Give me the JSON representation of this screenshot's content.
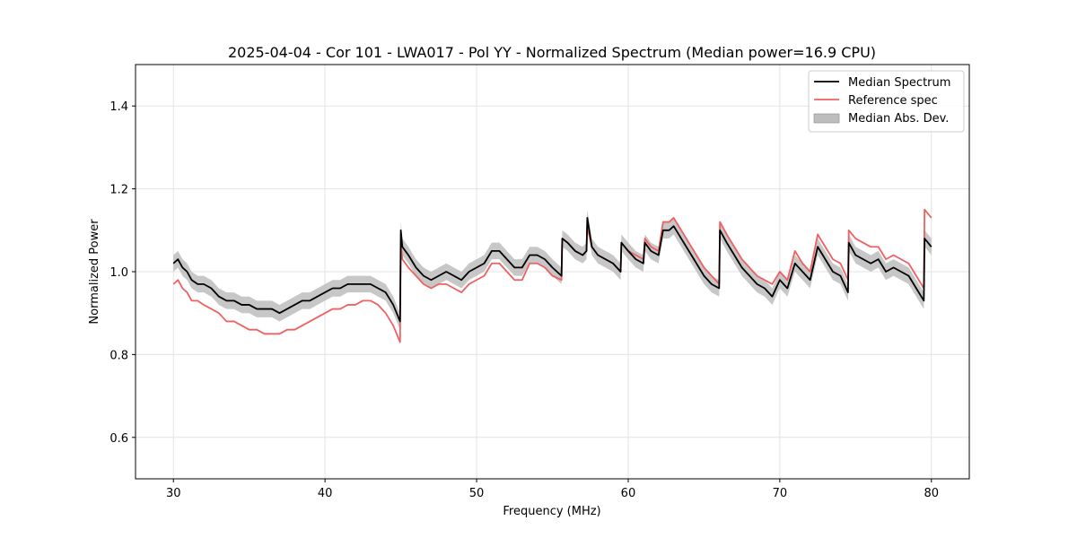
{
  "chart_data": {
    "type": "line",
    "title": "2025-04-04 - Cor 101 - LWA017 - Pol YY - Normalized Spectrum (Median power=16.9 CPU)",
    "xlabel": "Frequency (MHz)",
    "ylabel": "Normalized Power",
    "xlim": [
      27.5,
      82.5
    ],
    "ylim": [
      0.5,
      1.5
    ],
    "grid": true,
    "legend_position": "top-right",
    "xticks": [
      30,
      40,
      50,
      60,
      70,
      80
    ],
    "yticks": [
      0.6,
      0.8,
      1.0,
      1.2,
      1.4
    ],
    "xtick_labels": [
      "30",
      "40",
      "50",
      "60",
      "70",
      "80"
    ],
    "ytick_labels": [
      "0.6",
      "0.8",
      "1.0",
      "1.2",
      "1.4"
    ],
    "colors": {
      "median": "#000000",
      "reference": "#f06060",
      "mad": "#bdbdbd"
    },
    "legend": [
      "Median Spectrum",
      "Reference spec",
      "Median Abs. Dev."
    ],
    "series": [
      {
        "name": "Median Spectrum",
        "x": [
          30.0,
          30.3,
          30.6,
          30.9,
          31.2,
          31.6,
          32.0,
          32.5,
          33.0,
          33.5,
          34.0,
          34.5,
          35.0,
          35.5,
          36.0,
          36.5,
          37.0,
          37.5,
          38.0,
          38.5,
          39.0,
          39.5,
          40.0,
          40.5,
          41.0,
          41.5,
          42.0,
          42.5,
          43.0,
          43.5,
          44.0,
          44.5,
          44.95,
          45.0,
          45.1,
          45.5,
          46.0,
          46.5,
          47.0,
          47.5,
          48.0,
          48.5,
          49.0,
          49.5,
          50.0,
          50.5,
          51.0,
          51.5,
          52.0,
          52.5,
          53.0,
          53.5,
          54.0,
          54.5,
          55.0,
          55.6,
          55.65,
          56.0,
          56.5,
          57.0,
          57.25,
          57.3,
          57.6,
          58.0,
          58.5,
          59.0,
          59.5,
          59.55,
          60.0,
          60.5,
          61.0,
          61.1,
          61.5,
          62.0,
          62.3,
          62.7,
          63.0,
          63.5,
          64.0,
          64.5,
          65.0,
          65.5,
          66.0,
          66.05,
          66.5,
          67.0,
          67.5,
          68.0,
          68.5,
          69.0,
          69.5,
          70.0,
          70.5,
          71.0,
          71.5,
          72.0,
          72.5,
          73.0,
          73.5,
          74.0,
          74.5,
          74.55,
          75.0,
          75.5,
          76.0,
          76.5,
          77.0,
          77.5,
          78.0,
          78.5,
          79.0,
          79.5,
          79.55,
          80.0
        ],
        "values": [
          1.02,
          1.03,
          1.01,
          1.0,
          0.98,
          0.97,
          0.97,
          0.96,
          0.94,
          0.93,
          0.93,
          0.92,
          0.92,
          0.91,
          0.91,
          0.91,
          0.9,
          0.91,
          0.92,
          0.93,
          0.93,
          0.94,
          0.95,
          0.96,
          0.96,
          0.97,
          0.97,
          0.97,
          0.97,
          0.96,
          0.95,
          0.92,
          0.88,
          1.1,
          1.06,
          1.04,
          1.01,
          0.99,
          0.98,
          0.99,
          1.0,
          0.99,
          0.98,
          1.0,
          1.01,
          1.02,
          1.05,
          1.05,
          1.03,
          1.01,
          1.01,
          1.04,
          1.04,
          1.03,
          1.01,
          0.99,
          1.08,
          1.07,
          1.05,
          1.04,
          1.05,
          1.13,
          1.06,
          1.04,
          1.03,
          1.02,
          1.0,
          1.07,
          1.05,
          1.03,
          1.02,
          1.07,
          1.05,
          1.04,
          1.1,
          1.1,
          1.11,
          1.08,
          1.05,
          1.02,
          0.99,
          0.97,
          0.96,
          1.1,
          1.07,
          1.04,
          1.01,
          0.99,
          0.97,
          0.96,
          0.94,
          0.98,
          0.96,
          1.02,
          1.0,
          0.98,
          1.06,
          1.03,
          1.0,
          0.99,
          0.95,
          1.07,
          1.04,
          1.03,
          1.02,
          1.03,
          1.0,
          1.01,
          1.0,
          0.99,
          0.96,
          0.93,
          1.08,
          1.06
        ]
      },
      {
        "name": "Reference spec",
        "x": [
          30.0,
          30.3,
          30.6,
          30.9,
          31.2,
          31.6,
          32.0,
          32.5,
          33.0,
          33.5,
          34.0,
          34.5,
          35.0,
          35.5,
          36.0,
          36.5,
          37.0,
          37.5,
          38.0,
          38.5,
          39.0,
          39.5,
          40.0,
          40.5,
          41.0,
          41.5,
          42.0,
          42.5,
          43.0,
          43.5,
          44.0,
          44.5,
          44.95,
          45.0,
          45.1,
          45.5,
          46.0,
          46.5,
          47.0,
          47.5,
          48.0,
          48.5,
          49.0,
          49.5,
          50.0,
          50.5,
          51.0,
          51.5,
          52.0,
          52.5,
          53.0,
          53.5,
          54.0,
          54.5,
          55.0,
          55.6,
          55.65,
          56.0,
          56.5,
          57.0,
          57.25,
          57.3,
          57.6,
          58.0,
          58.5,
          59.0,
          59.5,
          59.55,
          60.0,
          60.5,
          61.0,
          61.1,
          61.5,
          62.0,
          62.3,
          62.7,
          63.0,
          63.5,
          64.0,
          64.5,
          65.0,
          65.5,
          66.0,
          66.05,
          66.5,
          67.0,
          67.5,
          68.0,
          68.5,
          69.0,
          69.5,
          70.0,
          70.5,
          71.0,
          71.5,
          72.0,
          72.5,
          73.0,
          73.5,
          74.0,
          74.5,
          74.55,
          75.0,
          75.5,
          76.0,
          76.5,
          77.0,
          77.5,
          78.0,
          78.5,
          79.0,
          79.5,
          79.55,
          80.0
        ],
        "values": [
          0.97,
          0.98,
          0.96,
          0.95,
          0.93,
          0.93,
          0.92,
          0.91,
          0.9,
          0.88,
          0.88,
          0.87,
          0.86,
          0.86,
          0.85,
          0.85,
          0.85,
          0.86,
          0.86,
          0.87,
          0.88,
          0.89,
          0.9,
          0.91,
          0.91,
          0.92,
          0.92,
          0.93,
          0.93,
          0.92,
          0.9,
          0.87,
          0.83,
          1.07,
          1.03,
          1.01,
          0.99,
          0.97,
          0.96,
          0.97,
          0.97,
          0.96,
          0.95,
          0.97,
          0.98,
          0.99,
          1.02,
          1.02,
          1.0,
          0.98,
          0.98,
          1.02,
          1.02,
          1.01,
          0.99,
          0.98,
          1.08,
          1.07,
          1.05,
          1.04,
          1.05,
          1.11,
          1.06,
          1.04,
          1.03,
          1.02,
          1.0,
          1.07,
          1.05,
          1.04,
          1.03,
          1.08,
          1.06,
          1.05,
          1.12,
          1.12,
          1.13,
          1.1,
          1.07,
          1.04,
          1.01,
          0.99,
          0.97,
          1.12,
          1.09,
          1.06,
          1.03,
          1.01,
          0.99,
          0.98,
          0.97,
          1.0,
          0.98,
          1.05,
          1.02,
          1.0,
          1.09,
          1.06,
          1.03,
          1.02,
          0.98,
          1.1,
          1.08,
          1.07,
          1.06,
          1.06,
          1.03,
          1.04,
          1.03,
          1.02,
          0.99,
          0.96,
          1.15,
          1.13
        ]
      }
    ],
    "mad_half_width": 0.02
  }
}
